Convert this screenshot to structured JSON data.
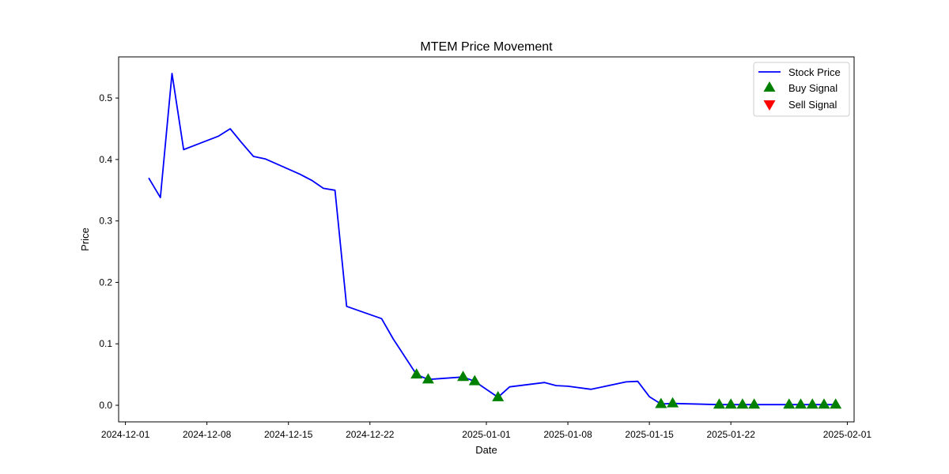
{
  "chart_data": {
    "type": "line",
    "title": "MTEM Price Movement",
    "xlabel": "Date",
    "ylabel": "Price",
    "xlim": [
      "2024-11-30T10:00",
      "2025-02-01T14:00"
    ],
    "ylim": [
      -0.027,
      0.567
    ],
    "x_ticks": [
      "2024-12-01",
      "2024-12-08",
      "2024-12-15",
      "2024-12-22",
      "2025-01-01",
      "2025-01-08",
      "2025-01-15",
      "2025-01-22",
      "2025-02-01"
    ],
    "y_ticks": [
      "0.0",
      "0.1",
      "0.2",
      "0.3",
      "0.4",
      "0.5"
    ],
    "grid": false,
    "legend_position": "top-right",
    "legend": [
      "Stock Price",
      "Buy Signal",
      "Sell Signal"
    ],
    "colors": {
      "price": "#0000ff",
      "buy": "#008000",
      "sell": "#ff0000"
    },
    "series": [
      {
        "name": "Stock Price",
        "points": [
          [
            "2024-12-03",
            0.37
          ],
          [
            "2024-12-04",
            0.338
          ],
          [
            "2024-12-05",
            0.54
          ],
          [
            "2024-12-06",
            0.416
          ],
          [
            "2024-12-09",
            0.438
          ],
          [
            "2024-12-10",
            0.45
          ],
          [
            "2024-12-11",
            0.427
          ],
          [
            "2024-12-12",
            0.405
          ],
          [
            "2024-12-13",
            0.401
          ],
          [
            "2024-12-16",
            0.376
          ],
          [
            "2024-12-17",
            0.366
          ],
          [
            "2024-12-18",
            0.353
          ],
          [
            "2024-12-19",
            0.35
          ],
          [
            "2024-12-20",
            0.161
          ],
          [
            "2024-12-23",
            0.141
          ],
          [
            "2024-12-24",
            0.108
          ],
          [
            "2024-12-26",
            0.05
          ],
          [
            "2024-12-27",
            0.042
          ],
          [
            "2024-12-30",
            0.046
          ],
          [
            "2024-12-31",
            0.039
          ],
          [
            "2025-01-02",
            0.013
          ],
          [
            "2025-01-03",
            0.03
          ],
          [
            "2025-01-06",
            0.037
          ],
          [
            "2025-01-07",
            0.032
          ],
          [
            "2025-01-08",
            0.031
          ],
          [
            "2025-01-10",
            0.026
          ],
          [
            "2025-01-13",
            0.038
          ],
          [
            "2025-01-14",
            0.039
          ],
          [
            "2025-01-15",
            0.014
          ],
          [
            "2025-01-16",
            0.002
          ],
          [
            "2025-01-17",
            0.003
          ],
          [
            "2025-01-21",
            0.001
          ],
          [
            "2025-01-22",
            0.001
          ],
          [
            "2025-01-23",
            0.001
          ],
          [
            "2025-01-24",
            0.001
          ],
          [
            "2025-01-27",
            0.001
          ],
          [
            "2025-01-28",
            0.001
          ],
          [
            "2025-01-29",
            0.001
          ],
          [
            "2025-01-30",
            0.001
          ],
          [
            "2025-01-31",
            0.001
          ]
        ]
      },
      {
        "name": "Buy Signal",
        "points": [
          [
            "2024-12-26",
            0.05
          ],
          [
            "2024-12-27",
            0.042
          ],
          [
            "2024-12-30",
            0.046
          ],
          [
            "2024-12-31",
            0.039
          ],
          [
            "2025-01-02",
            0.013
          ],
          [
            "2025-01-16",
            0.002
          ],
          [
            "2025-01-17",
            0.003
          ],
          [
            "2025-01-21",
            0.001
          ],
          [
            "2025-01-22",
            0.001
          ],
          [
            "2025-01-23",
            0.001
          ],
          [
            "2025-01-24",
            0.001
          ],
          [
            "2025-01-27",
            0.001
          ],
          [
            "2025-01-28",
            0.001
          ],
          [
            "2025-01-29",
            0.001
          ],
          [
            "2025-01-30",
            0.001
          ],
          [
            "2025-01-31",
            0.001
          ]
        ]
      },
      {
        "name": "Sell Signal",
        "points": []
      }
    ]
  }
}
